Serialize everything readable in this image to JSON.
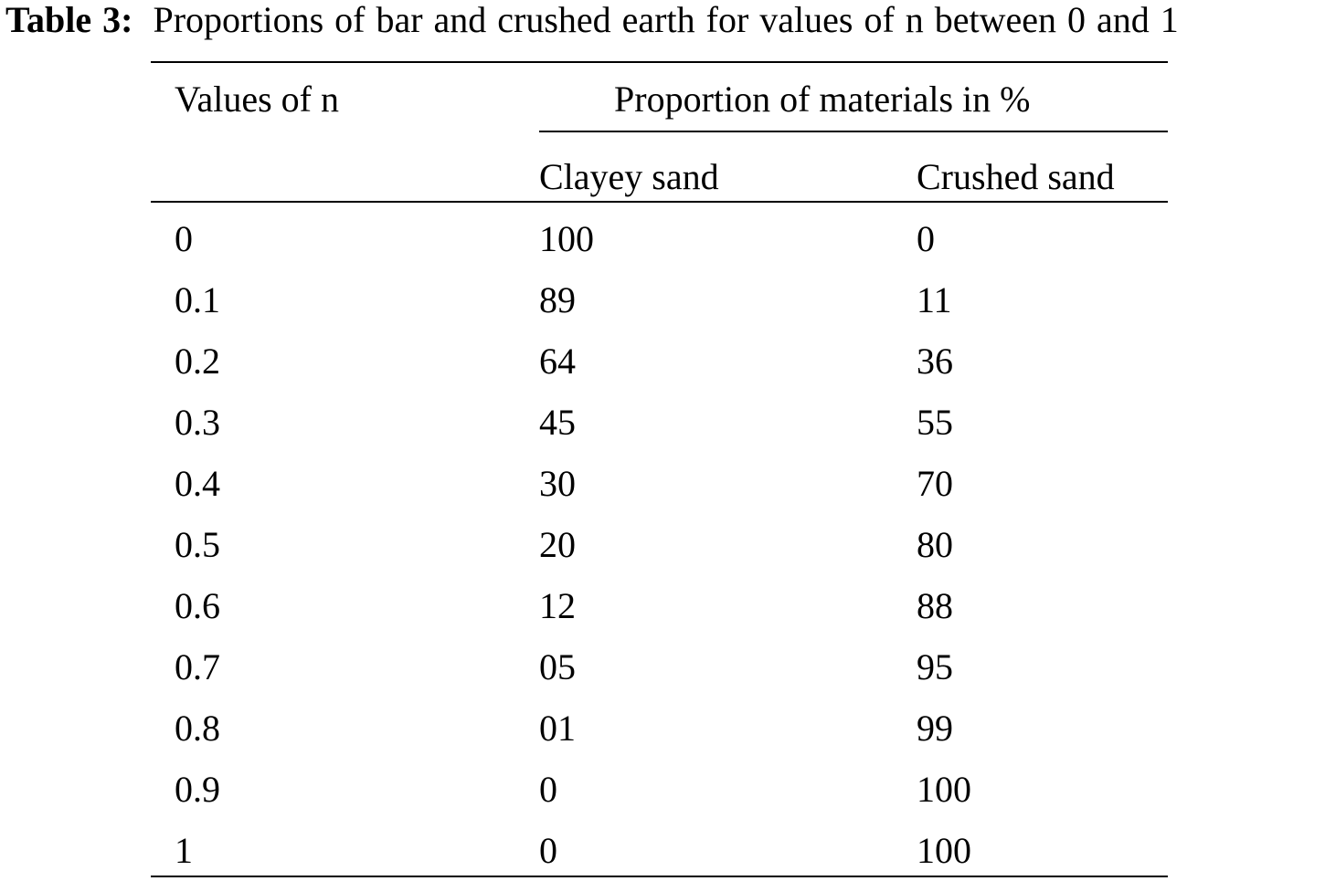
{
  "caption": {
    "label": "Table 3:",
    "text": "Proportions of bar and crushed earth for values of n between 0 and 1"
  },
  "table": {
    "header": {
      "col1": "Values of n",
      "group": "Proportion of materials in %",
      "col2": "Clayey sand",
      "col3": "Crushed sand"
    },
    "rows": [
      {
        "n": "0",
        "clayey": "100",
        "crushed": "0"
      },
      {
        "n": "0.1",
        "clayey": "89",
        "crushed": "11"
      },
      {
        "n": "0.2",
        "clayey": "64",
        "crushed": "36"
      },
      {
        "n": "0.3",
        "clayey": "45",
        "crushed": "55"
      },
      {
        "n": "0.4",
        "clayey": "30",
        "crushed": "70"
      },
      {
        "n": "0.5",
        "clayey": "20",
        "crushed": "80"
      },
      {
        "n": "0.6",
        "clayey": "12",
        "crushed": "88"
      },
      {
        "n": "0.7",
        "clayey": "05",
        "crushed": "95"
      },
      {
        "n": "0.8",
        "clayey": "01",
        "crushed": "99"
      },
      {
        "n": "0.9",
        "clayey": "0",
        "crushed": "100"
      },
      {
        "n": "1",
        "clayey": "0",
        "crushed": "100"
      }
    ]
  }
}
